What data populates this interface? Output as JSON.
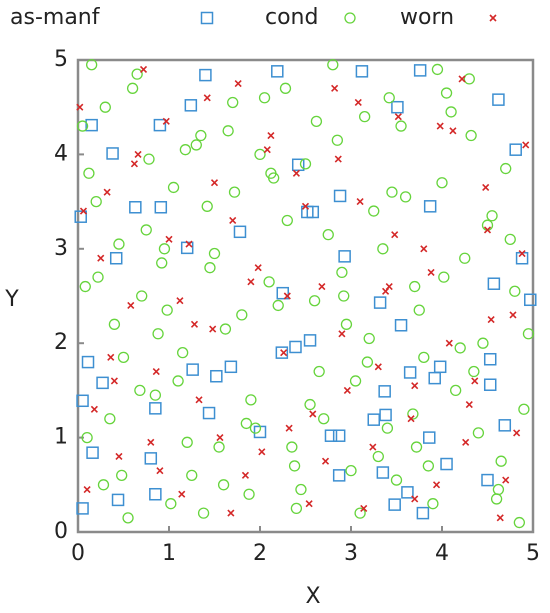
{
  "chart_data": {
    "type": "scatter",
    "x_label": "X",
    "y_label": "Y",
    "xlim": [
      0,
      5
    ],
    "ylim": [
      0,
      5
    ],
    "xticks": [
      0,
      1,
      2,
      3,
      4,
      5
    ],
    "yticks": [
      0,
      1,
      2,
      3,
      4,
      5
    ],
    "series": [
      {
        "name": "as-manf",
        "color": "#3d8fd1",
        "marker": "square",
        "x": [
          0.03,
          0.15,
          0.38,
          0.63,
          0.91,
          0.9,
          1.4,
          1.24,
          2.19,
          3.12,
          3.76,
          3.51,
          4.62,
          4.81,
          2.42,
          2.88,
          3.87,
          2.52,
          2.58,
          1.78,
          1.2,
          0.42,
          2.93,
          2.25,
          3.32,
          3.55,
          4.57,
          4.88,
          4.97,
          0.11,
          0.27,
          0.05,
          0.85,
          1.26,
          1.52,
          1.44,
          1.68,
          2.0,
          2.24,
          2.39,
          2.55,
          3.37,
          3.25,
          3.38,
          3.65,
          3.92,
          3.98,
          4.53,
          4.53,
          4.69,
          3.86,
          4.05,
          2.78,
          2.87,
          2.87,
          3.35,
          3.62,
          3.48,
          3.79,
          4.5,
          0.85,
          0.44,
          0.16,
          0.8,
          0.05
        ],
        "y": [
          3.34,
          4.31,
          4.01,
          3.44,
          3.44,
          4.31,
          4.84,
          4.52,
          4.88,
          4.88,
          4.89,
          4.5,
          4.58,
          4.05,
          3.89,
          3.56,
          3.45,
          3.39,
          3.39,
          3.18,
          3.01,
          2.9,
          2.92,
          2.53,
          2.43,
          2.19,
          2.63,
          2.9,
          2.46,
          1.8,
          1.58,
          1.39,
          1.31,
          1.72,
          1.65,
          1.26,
          1.75,
          1.06,
          1.9,
          1.96,
          2.03,
          1.49,
          1.19,
          1.24,
          1.69,
          1.63,
          1.75,
          1.83,
          1.56,
          1.13,
          1.0,
          0.72,
          1.02,
          1.02,
          0.6,
          0.63,
          0.42,
          0.29,
          0.2,
          0.55,
          0.4,
          0.34,
          0.84,
          0.78,
          0.25
        ]
      },
      {
        "name": "cond",
        "color": "#66d43c",
        "marker": "circle",
        "x": [
          0.05,
          0.12,
          0.22,
          0.35,
          0.48,
          0.6,
          0.75,
          0.88,
          1.02,
          1.15,
          1.3,
          1.45,
          1.6,
          1.72,
          1.9,
          2.05,
          2.2,
          2.35,
          2.5,
          2.65,
          2.8,
          2.95,
          3.1,
          3.25,
          3.4,
          3.55,
          3.7,
          3.85,
          4.0,
          4.15,
          4.3,
          4.45,
          4.6,
          4.75,
          4.9,
          0.1,
          0.3,
          0.55,
          0.7,
          0.95,
          1.1,
          1.35,
          1.55,
          1.8,
          2.0,
          2.3,
          2.45,
          2.7,
          2.9,
          3.15,
          3.3,
          3.6,
          3.8,
          4.05,
          4.25,
          4.4,
          4.7,
          4.85,
          0.2,
          0.4,
          0.65,
          0.85,
          1.05,
          1.25,
          1.5,
          1.65,
          1.95,
          2.15,
          2.4,
          2.6,
          2.85,
          3.05,
          3.35,
          3.5,
          3.75,
          3.95,
          4.2,
          4.5,
          4.65,
          4.95,
          0.08,
          0.28,
          0.5,
          0.78,
          0.98,
          1.2,
          1.42,
          1.7,
          1.88,
          2.1,
          2.28,
          2.55,
          2.75,
          3.0,
          3.2,
          3.45,
          3.68,
          3.9,
          4.1,
          4.35,
          4.55,
          4.8,
          0.15,
          0.45,
          0.68,
          0.92,
          1.18,
          1.38,
          1.62,
          1.85,
          2.12,
          2.38,
          2.62,
          2.92,
          3.18,
          3.42,
          3.72,
          4.02,
          4.32,
          4.62
        ],
        "y": [
          4.3,
          3.8,
          2.7,
          1.2,
          0.6,
          4.7,
          3.2,
          2.1,
          0.3,
          1.9,
          4.1,
          2.8,
          0.5,
          3.6,
          1.4,
          4.6,
          2.4,
          0.9,
          3.9,
          1.7,
          4.95,
          2.2,
          0.2,
          3.4,
          1.1,
          4.3,
          2.6,
          0.7,
          3.7,
          1.5,
          4.8,
          2.0,
          0.35,
          3.1,
          1.3,
          1.0,
          4.5,
          0.15,
          2.5,
          3.0,
          1.6,
          4.2,
          0.9,
          2.3,
          4.0,
          3.3,
          0.45,
          1.2,
          2.75,
          4.4,
          0.8,
          3.55,
          1.85,
          4.65,
          2.9,
          1.05,
          3.85,
          0.1,
          3.5,
          2.2,
          4.85,
          1.45,
          3.65,
          0.6,
          2.95,
          4.25,
          1.1,
          3.75,
          0.25,
          2.45,
          4.15,
          1.6,
          3.0,
          0.55,
          2.35,
          4.9,
          1.95,
          3.25,
          0.75,
          2.1,
          2.6,
          0.5,
          1.85,
          3.95,
          2.35,
          0.95,
          3.45,
          4.55,
          0.4,
          2.65,
          4.7,
          1.35,
          3.15,
          0.65,
          2.05,
          3.6,
          1.25,
          0.3,
          4.45,
          1.7,
          3.35,
          2.55,
          4.95,
          3.05,
          1.5,
          2.85,
          4.05,
          0.2,
          2.15,
          1.15,
          3.8,
          0.7,
          4.35,
          2.5,
          1.8,
          4.6,
          0.9,
          2.7,
          4.2,
          0.45
        ],
        "note_unused": null
      },
      {
        "name": "worn",
        "color": "#d42828",
        "marker": "x",
        "x": [
          0.02,
          0.18,
          0.32,
          0.45,
          0.58,
          0.72,
          0.86,
          1.0,
          1.14,
          1.28,
          1.42,
          1.56,
          1.7,
          1.84,
          1.98,
          2.12,
          2.26,
          2.4,
          2.54,
          2.68,
          2.82,
          2.96,
          3.1,
          3.24,
          3.38,
          3.52,
          3.66,
          3.8,
          3.94,
          4.08,
          4.22,
          4.36,
          4.5,
          4.64,
          4.78,
          4.92,
          0.1,
          0.25,
          0.4,
          0.62,
          0.8,
          0.97,
          1.12,
          1.33,
          1.5,
          1.68,
          1.9,
          2.08,
          2.32,
          2.5,
          2.72,
          2.9,
          3.08,
          3.3,
          3.48,
          3.7,
          3.88,
          4.12,
          4.3,
          4.48,
          4.7,
          4.88,
          0.06,
          0.36,
          0.66,
          0.9,
          1.22,
          1.48,
          1.76,
          2.02,
          2.3,
          2.58,
          2.86,
          3.14,
          3.42,
          3.7,
          3.98,
          4.26,
          4.54,
          4.82
        ],
        "y": [
          4.5,
          1.3,
          3.6,
          0.8,
          2.4,
          4.9,
          1.7,
          3.1,
          0.4,
          2.2,
          4.6,
          1.0,
          3.3,
          0.6,
          2.8,
          4.2,
          1.9,
          3.8,
          0.3,
          2.6,
          4.7,
          1.5,
          3.5,
          0.9,
          2.55,
          4.4,
          1.2,
          3.0,
          0.5,
          2.0,
          4.8,
          1.6,
          3.2,
          0.15,
          2.3,
          4.1,
          0.45,
          2.9,
          1.6,
          3.9,
          0.95,
          4.35,
          2.45,
          1.4,
          3.7,
          0.2,
          2.65,
          4.05,
          1.1,
          3.45,
          0.75,
          2.1,
          4.55,
          1.75,
          3.15,
          0.35,
          2.75,
          4.25,
          1.35,
          3.65,
          0.55,
          2.95,
          3.4,
          1.85,
          4.0,
          0.65,
          3.05,
          2.15,
          4.75,
          0.85,
          2.5,
          1.25,
          3.95,
          0.25,
          2.6,
          1.55,
          4.3,
          0.95,
          2.25,
          1.05
        ]
      }
    ]
  }
}
